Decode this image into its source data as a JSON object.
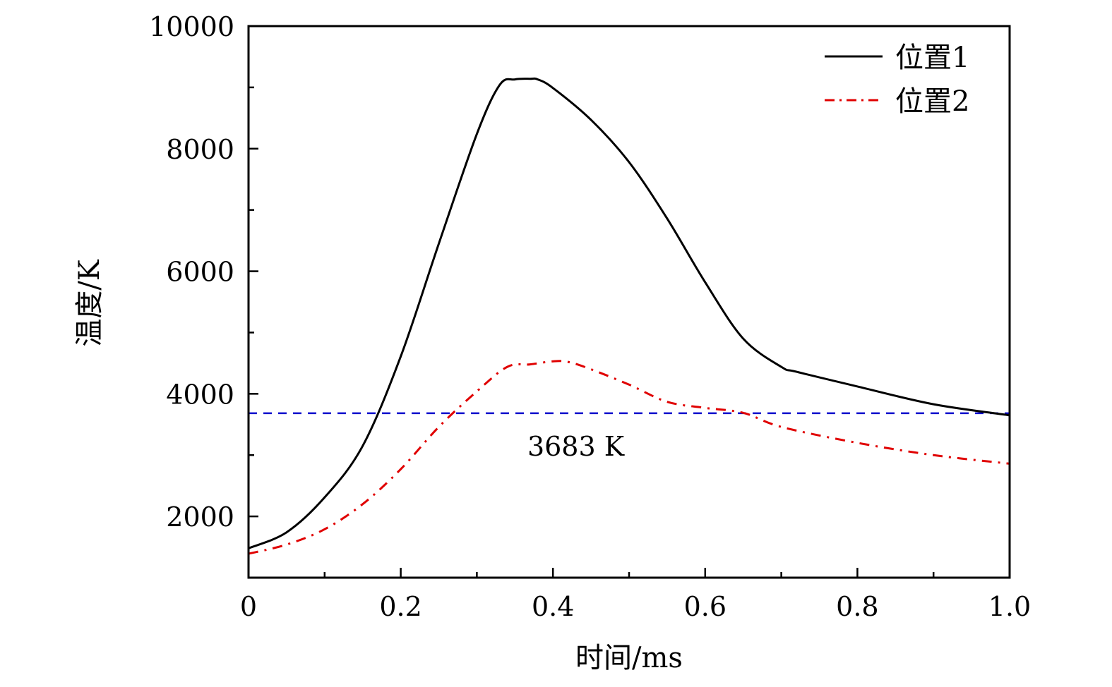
{
  "chart_data": {
    "type": "line",
    "title": "",
    "xlabel": "时间/ms",
    "ylabel": "温度/K",
    "xlim": [
      0,
      1.0
    ],
    "ylim": [
      1000,
      10000
    ],
    "xticks": [
      0,
      0.2,
      0.4,
      0.6,
      0.8,
      1.0
    ],
    "xtick_labels": [
      "0",
      "0.2",
      "0.4",
      "0.6",
      "0.8",
      "1.0"
    ],
    "xminor_ticks": [
      0.1,
      0.3,
      0.5,
      0.7,
      0.9
    ],
    "yticks": [
      2000,
      4000,
      6000,
      8000,
      10000
    ],
    "ytick_labels": [
      "2000",
      "4000",
      "6000",
      "8000",
      "10000"
    ],
    "yminor_ticks": [
      3000,
      5000,
      7000,
      9000
    ],
    "grid": false,
    "legend_position": "top-right",
    "series": [
      {
        "name": "位置1",
        "color": "#000000",
        "style": "solid",
        "x": [
          0,
          0.05,
          0.1,
          0.15,
          0.2,
          0.25,
          0.3,
          0.33,
          0.35,
          0.37,
          0.38,
          0.4,
          0.45,
          0.5,
          0.55,
          0.6,
          0.65,
          0.7,
          0.72,
          0.8,
          0.9,
          1.0
        ],
        "values": [
          1480,
          1740,
          2310,
          3150,
          4610,
          6450,
          8240,
          9040,
          9130,
          9140,
          9130,
          8990,
          8470,
          7780,
          6860,
          5820,
          4900,
          4440,
          4360,
          4120,
          3830,
          3650
        ]
      },
      {
        "name": "位置2",
        "color": "#e00000",
        "style": "dash-dot",
        "x": [
          0,
          0.05,
          0.1,
          0.15,
          0.2,
          0.25,
          0.3,
          0.34,
          0.37,
          0.4,
          0.42,
          0.45,
          0.5,
          0.55,
          0.6,
          0.65,
          0.7,
          0.8,
          0.9,
          1.0
        ],
        "values": [
          1390,
          1540,
          1790,
          2200,
          2770,
          3460,
          4040,
          4440,
          4480,
          4530,
          4520,
          4400,
          4150,
          3870,
          3770,
          3690,
          3460,
          3200,
          3000,
          2860
        ]
      }
    ],
    "reference_line": {
      "value": 3683,
      "color": "#0000cc",
      "style": "dashed",
      "label": "3683 K",
      "label_x": 0.43,
      "label_y": 3150
    }
  }
}
